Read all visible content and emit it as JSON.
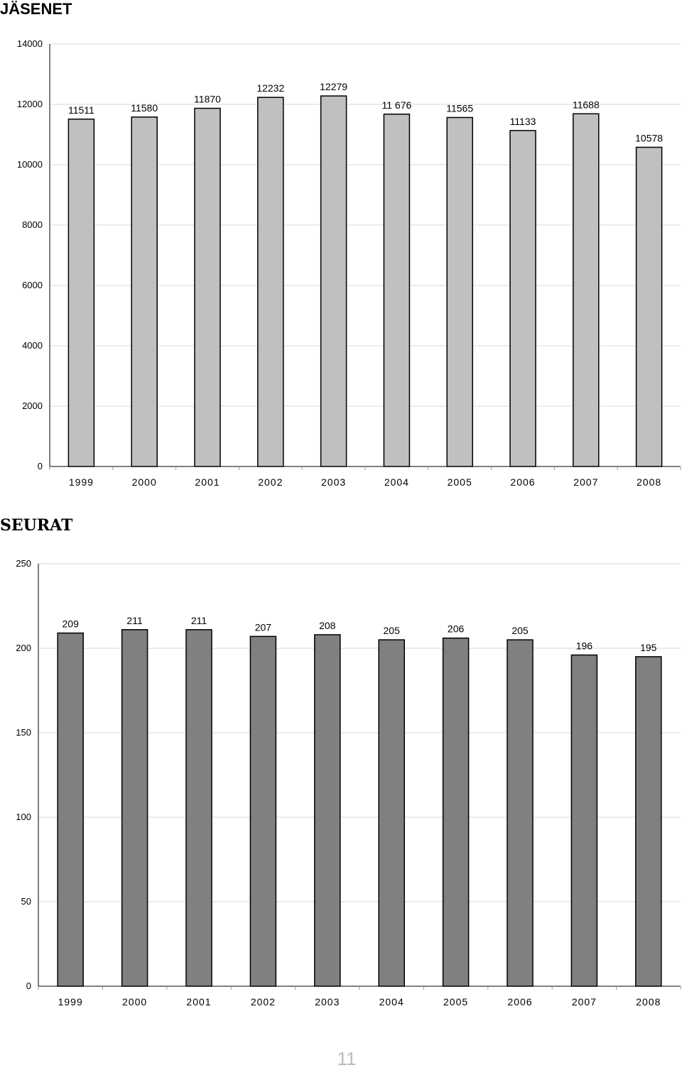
{
  "page_number": "11",
  "chart_data": [
    {
      "type": "bar",
      "title": "JÄSENET",
      "xlabel": "",
      "ylabel": "",
      "categories": [
        "1999",
        "2000",
        "2001",
        "2002",
        "2003",
        "2004",
        "2005",
        "2006",
        "2007",
        "2008"
      ],
      "values": [
        11511,
        11580,
        11870,
        12232,
        12279,
        11676,
        11565,
        11133,
        11688,
        10578
      ],
      "data_labels": [
        "11511",
        "11580",
        "11870",
        "12232",
        "12279",
        "11 676",
        "11565",
        "11133",
        "11688",
        "10578"
      ],
      "ylim": [
        0,
        14000
      ],
      "yticks": [
        "0",
        "2000",
        "4000",
        "6000",
        "8000",
        "10000",
        "12000",
        "14000"
      ],
      "grid": true,
      "legend": "none",
      "bar_color": "#c0c0c0"
    },
    {
      "type": "bar",
      "title": "SEURAT",
      "xlabel": "",
      "ylabel": "",
      "categories": [
        "1999",
        "2000",
        "2001",
        "2002",
        "2003",
        "2004",
        "2005",
        "2006",
        "2007",
        "2008"
      ],
      "values": [
        209,
        211,
        211,
        207,
        208,
        205,
        206,
        205,
        196,
        195
      ],
      "data_labels": [
        "209",
        "211",
        "211",
        "207",
        "208",
        "205",
        "206",
        "205",
        "196",
        "195"
      ],
      "ylim": [
        0,
        250
      ],
      "yticks": [
        "0",
        "50",
        "100",
        "150",
        "200",
        "250"
      ],
      "grid": true,
      "legend": "none",
      "bar_color": "#808080"
    }
  ]
}
